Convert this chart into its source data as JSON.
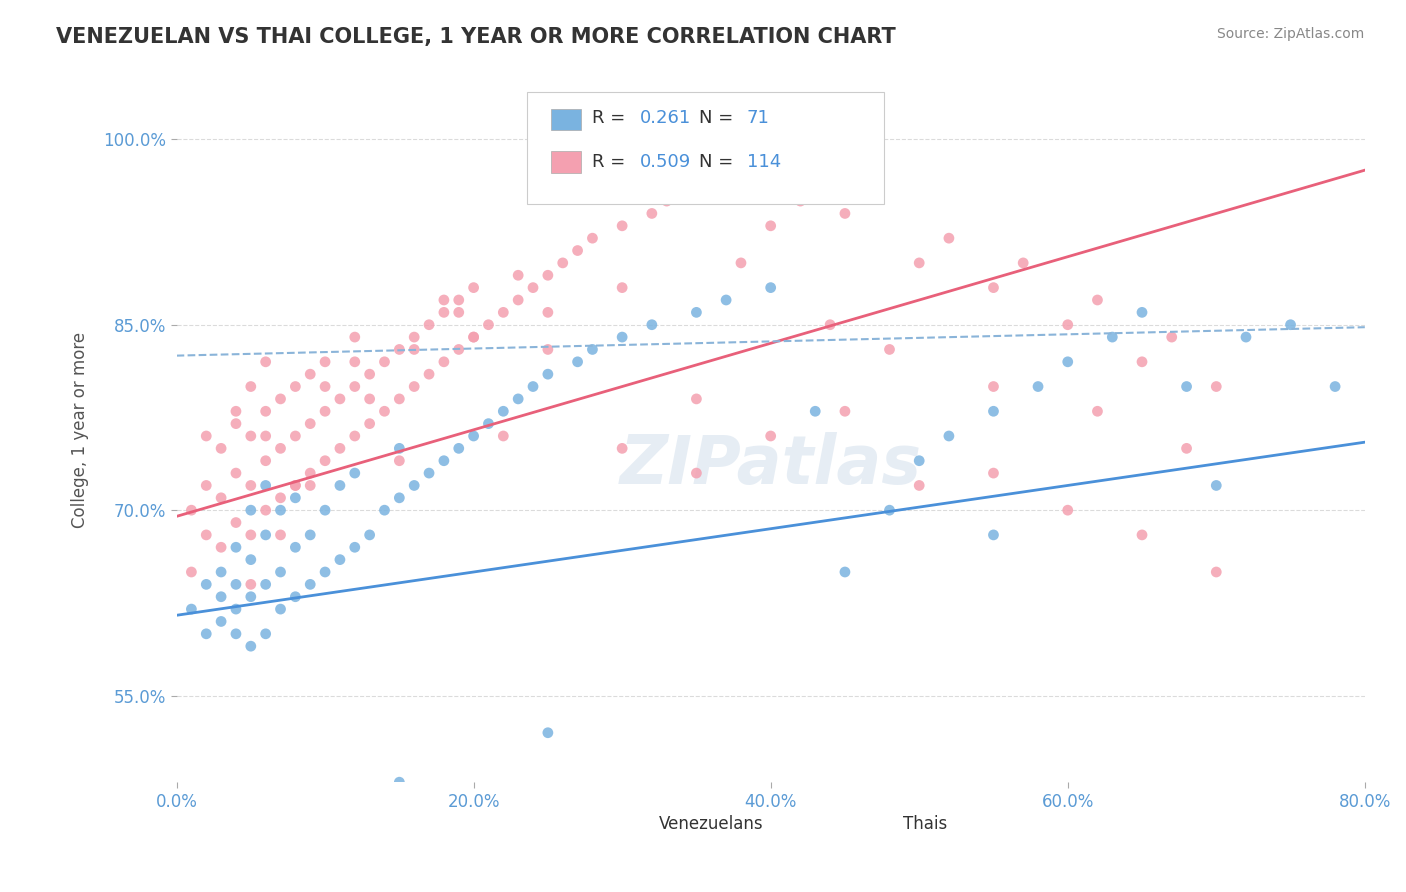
{
  "title": "VENEZUELAN VS THAI COLLEGE, 1 YEAR OR MORE CORRELATION CHART",
  "source": "Source: ZipAtlas.com",
  "xlabel": "",
  "ylabel": "College, 1 year or more",
  "xlim": [
    0.0,
    0.8
  ],
  "ylim": [
    0.48,
    1.05
  ],
  "yticks": [
    0.55,
    0.7,
    0.85,
    1.0
  ],
  "ytick_labels": [
    "55.0%",
    "70.0%",
    "85.0%",
    "100.0%"
  ],
  "xticks": [
    0.0,
    0.2,
    0.4,
    0.6,
    0.8
  ],
  "xtick_labels": [
    "0.0%",
    "20.0%",
    "40.0%",
    "60.0%",
    "80.0%"
  ],
  "venezuelan_color": "#7ab3e0",
  "thai_color": "#f4a0b0",
  "venezuelan_R": 0.261,
  "venezuelan_N": 71,
  "thai_R": 0.509,
  "thai_N": 114,
  "venezuelan_line_color": "#4a90d9",
  "thai_line_color": "#e8607a",
  "conf_line_color": "#8ab4d9",
  "watermark": "ZIPatlas",
  "background_color": "#ffffff",
  "grid_color": "#cccccc",
  "title_color": "#333333",
  "axis_label_color": "#5b9bd5",
  "venezuelan_scatter": {
    "x": [
      0.01,
      0.02,
      0.02,
      0.03,
      0.03,
      0.03,
      0.04,
      0.04,
      0.04,
      0.04,
      0.05,
      0.05,
      0.05,
      0.05,
      0.06,
      0.06,
      0.06,
      0.06,
      0.07,
      0.07,
      0.07,
      0.08,
      0.08,
      0.08,
      0.09,
      0.09,
      0.1,
      0.1,
      0.11,
      0.11,
      0.12,
      0.12,
      0.13,
      0.14,
      0.15,
      0.15,
      0.16,
      0.17,
      0.18,
      0.19,
      0.2,
      0.21,
      0.22,
      0.23,
      0.24,
      0.25,
      0.27,
      0.28,
      0.3,
      0.32,
      0.35,
      0.37,
      0.4,
      0.43,
      0.45,
      0.48,
      0.5,
      0.52,
      0.55,
      0.58,
      0.6,
      0.63,
      0.65,
      0.68,
      0.7,
      0.72,
      0.75,
      0.78,
      0.25,
      0.15,
      0.55
    ],
    "y": [
      0.62,
      0.6,
      0.64,
      0.61,
      0.65,
      0.63,
      0.6,
      0.62,
      0.64,
      0.67,
      0.59,
      0.63,
      0.66,
      0.7,
      0.6,
      0.64,
      0.68,
      0.72,
      0.62,
      0.65,
      0.7,
      0.63,
      0.67,
      0.71,
      0.64,
      0.68,
      0.65,
      0.7,
      0.66,
      0.72,
      0.67,
      0.73,
      0.68,
      0.7,
      0.71,
      0.75,
      0.72,
      0.73,
      0.74,
      0.75,
      0.76,
      0.77,
      0.78,
      0.79,
      0.8,
      0.81,
      0.82,
      0.83,
      0.84,
      0.85,
      0.86,
      0.87,
      0.88,
      0.78,
      0.65,
      0.7,
      0.74,
      0.76,
      0.78,
      0.8,
      0.82,
      0.84,
      0.86,
      0.8,
      0.72,
      0.84,
      0.85,
      0.8,
      0.52,
      0.48,
      0.68
    ]
  },
  "thai_scatter": {
    "x": [
      0.01,
      0.01,
      0.02,
      0.02,
      0.02,
      0.03,
      0.03,
      0.03,
      0.04,
      0.04,
      0.04,
      0.05,
      0.05,
      0.05,
      0.05,
      0.06,
      0.06,
      0.06,
      0.06,
      0.07,
      0.07,
      0.07,
      0.08,
      0.08,
      0.08,
      0.09,
      0.09,
      0.09,
      0.1,
      0.1,
      0.1,
      0.11,
      0.11,
      0.12,
      0.12,
      0.12,
      0.13,
      0.13,
      0.14,
      0.14,
      0.15,
      0.15,
      0.16,
      0.16,
      0.17,
      0.17,
      0.18,
      0.18,
      0.19,
      0.19,
      0.2,
      0.2,
      0.21,
      0.22,
      0.23,
      0.24,
      0.25,
      0.26,
      0.27,
      0.28,
      0.3,
      0.32,
      0.33,
      0.35,
      0.37,
      0.4,
      0.42,
      0.43,
      0.45,
      0.47,
      0.5,
      0.52,
      0.55,
      0.57,
      0.6,
      0.62,
      0.65,
      0.67,
      0.7,
      0.45,
      0.3,
      0.5,
      0.18,
      0.25,
      0.35,
      0.4,
      0.55,
      0.6,
      0.65,
      0.7,
      0.35,
      0.22,
      0.15,
      0.08,
      0.06,
      0.04,
      0.1,
      0.12,
      0.2,
      0.25,
      0.3,
      0.38,
      0.44,
      0.48,
      0.55,
      0.62,
      0.68,
      0.05,
      0.07,
      0.09,
      0.13,
      0.16,
      0.19,
      0.23
    ],
    "y": [
      0.65,
      0.7,
      0.68,
      0.72,
      0.76,
      0.67,
      0.71,
      0.75,
      0.69,
      0.73,
      0.77,
      0.68,
      0.72,
      0.76,
      0.8,
      0.7,
      0.74,
      0.78,
      0.82,
      0.71,
      0.75,
      0.79,
      0.72,
      0.76,
      0.8,
      0.73,
      0.77,
      0.81,
      0.74,
      0.78,
      0.82,
      0.75,
      0.79,
      0.76,
      0.8,
      0.84,
      0.77,
      0.81,
      0.78,
      0.82,
      0.79,
      0.83,
      0.8,
      0.84,
      0.81,
      0.85,
      0.82,
      0.86,
      0.83,
      0.87,
      0.84,
      0.88,
      0.85,
      0.86,
      0.87,
      0.88,
      0.89,
      0.9,
      0.91,
      0.92,
      0.93,
      0.94,
      0.95,
      0.96,
      0.97,
      0.93,
      0.95,
      0.97,
      0.94,
      0.96,
      0.9,
      0.92,
      0.88,
      0.9,
      0.85,
      0.87,
      0.82,
      0.84,
      0.8,
      0.78,
      0.75,
      0.72,
      0.87,
      0.83,
      0.79,
      0.76,
      0.73,
      0.7,
      0.68,
      0.65,
      0.73,
      0.76,
      0.74,
      0.72,
      0.76,
      0.78,
      0.8,
      0.82,
      0.84,
      0.86,
      0.88,
      0.9,
      0.85,
      0.83,
      0.8,
      0.78,
      0.75,
      0.64,
      0.68,
      0.72,
      0.79,
      0.83,
      0.86,
      0.89
    ]
  },
  "venezuelan_line": {
    "x0": 0.0,
    "x1": 0.8,
    "y0": 0.615,
    "y1": 0.755
  },
  "thai_line": {
    "x0": 0.0,
    "x1": 0.8,
    "y0": 0.695,
    "y1": 0.975
  },
  "conf_line": {
    "x0": 0.0,
    "x1": 0.8,
    "y0": 0.825,
    "y1": 0.848
  }
}
